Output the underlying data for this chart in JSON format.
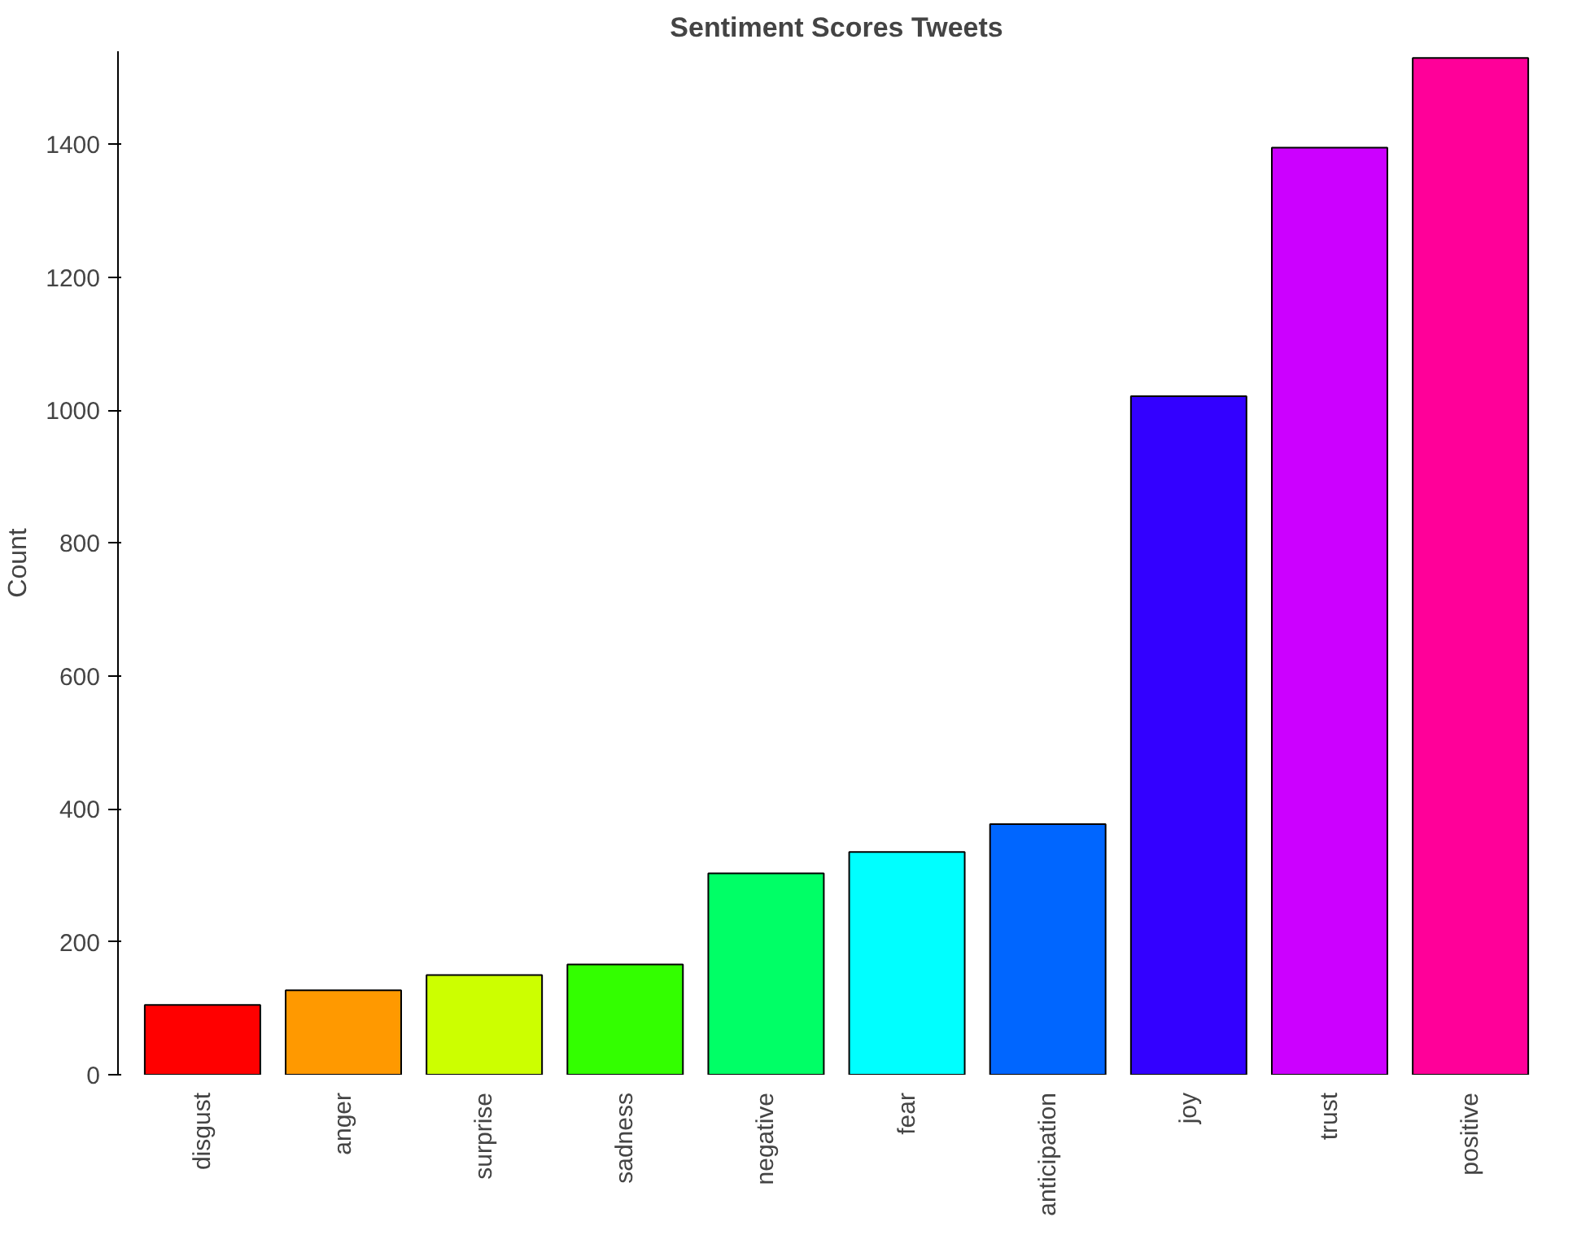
{
  "chart_data": {
    "type": "bar",
    "title": "Sentiment Scores Tweets",
    "ylabel": "Count",
    "categories": [
      "disgust",
      "anger",
      "surprise",
      "sadness",
      "negative",
      "fear",
      "anticipation",
      "joy",
      "trust",
      "positive"
    ],
    "values": [
      105,
      127,
      150,
      166,
      303,
      335,
      377,
      1021,
      1395,
      1530
    ],
    "colors": [
      "#ff0000",
      "#ff9900",
      "#ccff00",
      "#33ff00",
      "#00ff66",
      "#00ffff",
      "#0066ff",
      "#3300ff",
      "#cc00ff",
      "#ff0099"
    ],
    "ylim": [
      0,
      1540
    ],
    "yticks": [
      0,
      200,
      400,
      600,
      800,
      1000,
      1200,
      1400
    ],
    "grid": false
  }
}
